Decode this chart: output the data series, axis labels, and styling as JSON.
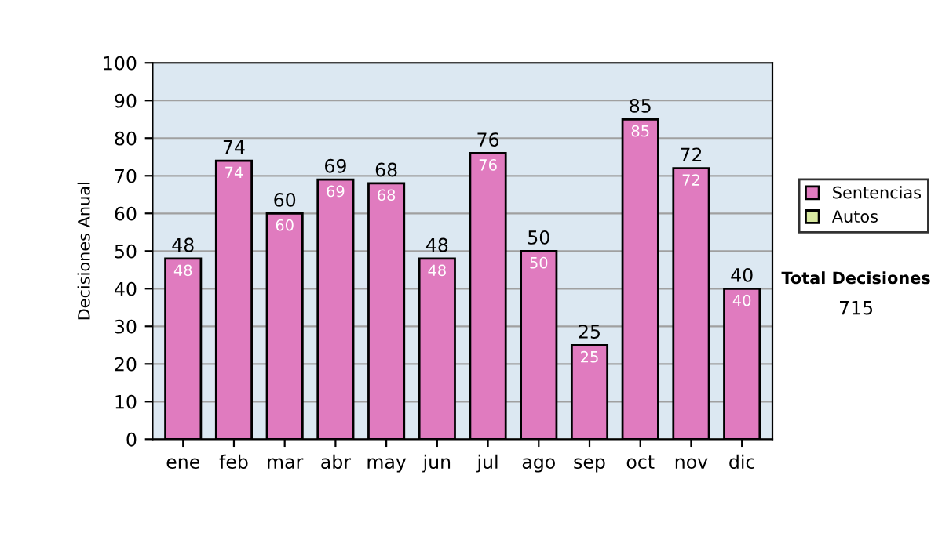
{
  "chart_data": {
    "type": "bar",
    "stacked": true,
    "ylabel": "Decisiones Anual",
    "categories": [
      "ene",
      "feb",
      "mar",
      "abr",
      "may",
      "jun",
      "jul",
      "ago",
      "sep",
      "oct",
      "nov",
      "dic"
    ],
    "series": [
      {
        "name": "Sentencias",
        "color": "#e07bbf",
        "values": [
          48,
          74,
          60,
          69,
          68,
          48,
          76,
          50,
          25,
          85,
          72,
          40
        ],
        "value_labels": [
          "48",
          "74",
          "60",
          "69",
          "68",
          "48",
          "76",
          "50",
          "25",
          "85",
          "72",
          "40"
        ]
      },
      {
        "name": "Autos",
        "color": "#d8e8a0",
        "values": [
          0,
          0,
          0,
          0,
          0,
          0,
          0,
          0,
          0,
          0,
          0,
          0
        ]
      }
    ],
    "totals": [
      "48",
      "74",
      "60",
      "69",
      "68",
      "48",
      "76",
      "50",
      "25",
      "85",
      "72",
      "40"
    ],
    "ylim": [
      0,
      100
    ],
    "yticks": [
      0,
      10,
      20,
      30,
      40,
      50,
      60,
      70,
      80,
      90,
      100
    ],
    "grid": "y",
    "legend": "right",
    "annotations": [
      "Total Decisiones",
      "715"
    ]
  }
}
